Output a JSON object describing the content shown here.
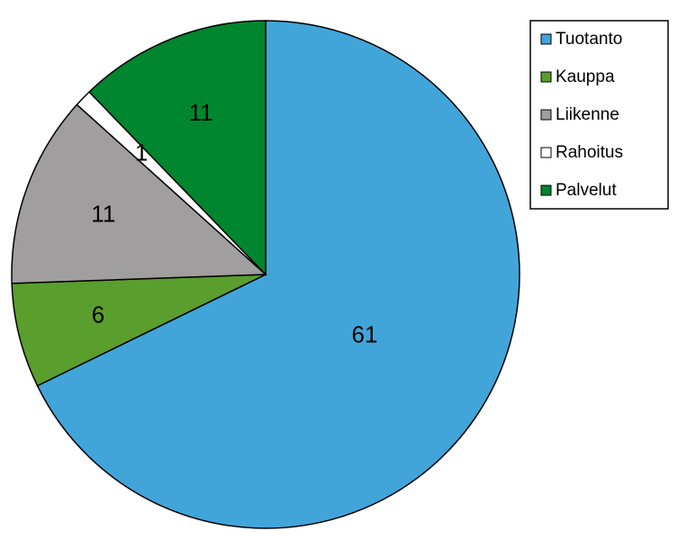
{
  "chart_data": {
    "type": "pie",
    "categories": [
      "Tuotanto",
      "Kauppa",
      "Liikenne",
      "Rahoitus",
      "Palvelut"
    ],
    "values": [
      61,
      6,
      11,
      1,
      11
    ],
    "colors": [
      "#42a5d9",
      "#5a9e2e",
      "#a09e9e",
      "#ffffff",
      "#00862f"
    ],
    "legend": "right"
  }
}
